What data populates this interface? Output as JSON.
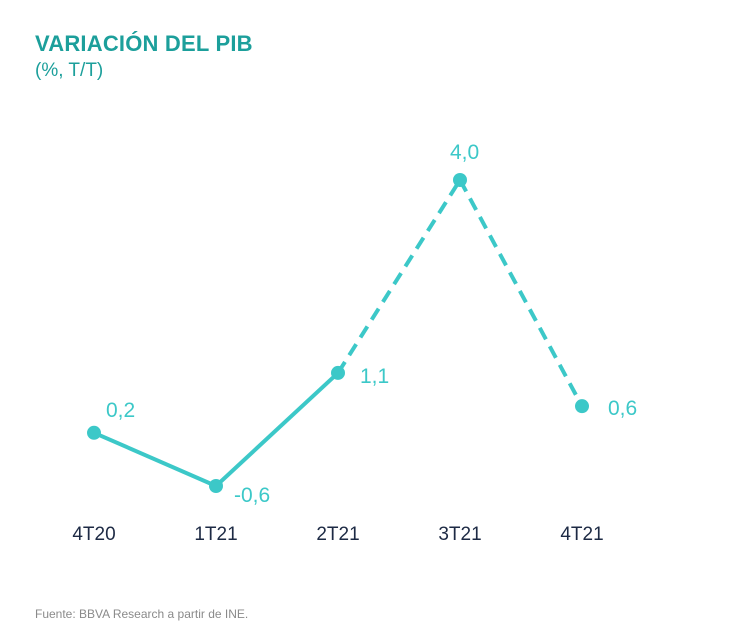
{
  "title": "VARIACIÓN DEL PIB",
  "subtitle": "(%, T/T)",
  "source": "Fuente: BBVA Research a partir de INE.",
  "colors": {
    "title": "#1c9f9b",
    "series": "#3cc8c8",
    "ticks": "#1d2a44",
    "source": "#8a8a8a"
  },
  "chart_data": {
    "type": "line",
    "title": "VARIACIÓN DEL PIB",
    "subtitle": "(%, T/T)",
    "xlabel": "",
    "ylabel": "",
    "categories": [
      "4T20",
      "1T21",
      "2T21",
      "3T21",
      "4T21"
    ],
    "series": [
      {
        "name": "PIB",
        "values": [
          0.2,
          -0.6,
          1.1,
          4.0,
          0.6
        ],
        "labels": [
          "0,2",
          "-0,6",
          "1,1",
          "4,0",
          "0,6"
        ],
        "styles": [
          "solid",
          "solid",
          "dashed",
          "dashed"
        ]
      }
    ],
    "ylim": [
      -0.6,
      4.0
    ],
    "grid": false,
    "legend": "none"
  }
}
